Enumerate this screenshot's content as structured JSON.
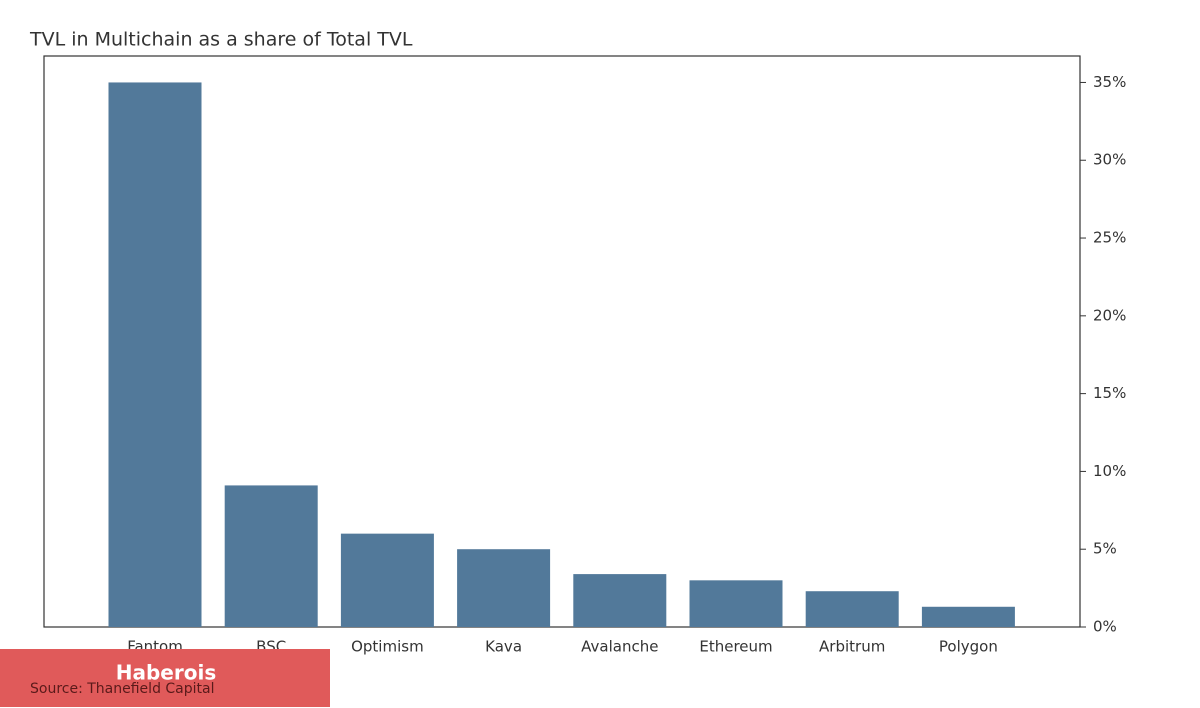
{
  "chart_data": {
    "type": "bar",
    "title": "TVL in Multichain as a share of Total TVL",
    "categories": [
      "Fantom",
      "BSC",
      "Optimism",
      "Kava",
      "Avalanche",
      "Ethereum",
      "Arbitrum",
      "Polygon"
    ],
    "values": [
      35,
      9.1,
      6.0,
      5.0,
      3.4,
      3.0,
      2.3,
      1.3
    ],
    "color": "#52799a",
    "ylim": [
      0,
      36.7
    ],
    "yticks": [
      {
        "value": 0,
        "label": "0%"
      },
      {
        "value": 5,
        "label": "5%"
      },
      {
        "value": 10,
        "label": "10%"
      },
      {
        "value": 15,
        "label": "15%"
      },
      {
        "value": 20,
        "label": "20%"
      },
      {
        "value": 25,
        "label": "25%"
      },
      {
        "value": 30,
        "label": "30%"
      },
      {
        "value": 35,
        "label": "35%"
      }
    ],
    "grid": false,
    "source": "Source: Thanefield Capital"
  },
  "overlay": {
    "text": "Haberois"
  }
}
